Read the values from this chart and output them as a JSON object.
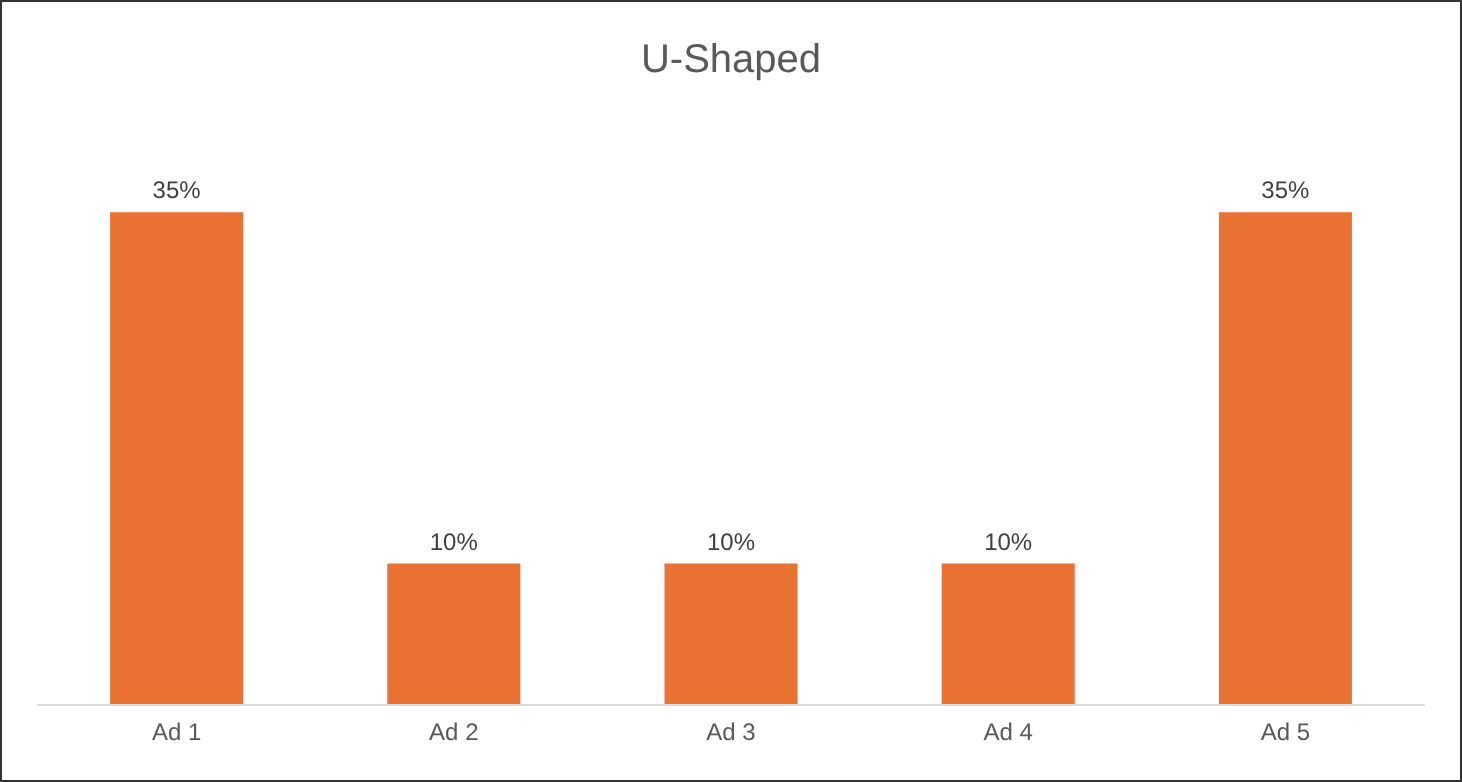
{
  "chart_data": {
    "type": "bar",
    "title": "U-Shaped",
    "categories": [
      "Ad 1",
      "Ad 2",
      "Ad 3",
      "Ad 4",
      "Ad 5"
    ],
    "values": [
      35,
      10,
      10,
      10,
      35
    ],
    "value_labels": [
      "35%",
      "10%",
      "10%",
      "10%",
      "35%"
    ],
    "color": "#e97132"
  }
}
